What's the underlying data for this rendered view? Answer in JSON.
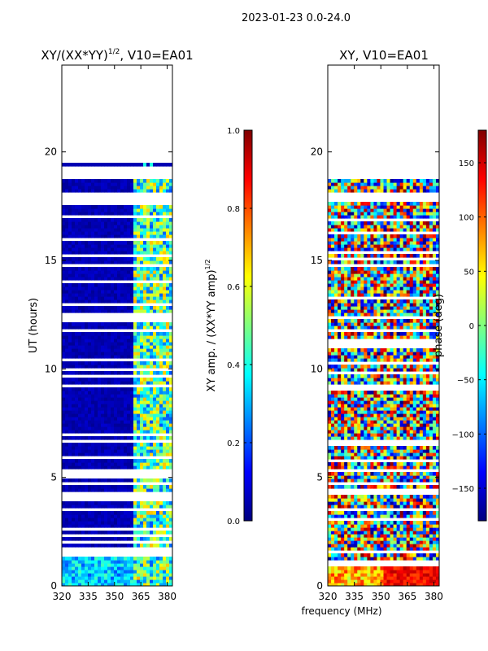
{
  "suptitle": "2023-01-23 0.0-24.0",
  "xlabel_shared": "frequency (MHz)",
  "chart_data": [
    {
      "type": "heatmap",
      "title": "XY/(XX*YY)^{1/2}, V10=EA01",
      "title_main": "XY/(XX*YY)",
      "title_sup": "1/2",
      "title_tail": ", V10=EA01",
      "xlabel": "",
      "ylabel": "UT (hours)",
      "xlim": [
        320,
        383
      ],
      "ylim": [
        0,
        24
      ],
      "xticks": [
        320,
        335,
        350,
        365,
        380
      ],
      "yticks": [
        0,
        5,
        10,
        15,
        20
      ],
      "colorbar": {
        "label": "XY amp. / (XX*YY amp)^{1/2}",
        "label_main": "XY amp. / (XX*YY amp)",
        "label_sup": "1/2",
        "range": [
          0.0,
          1.0
        ],
        "ticks": [
          0.0,
          0.2,
          0.4,
          0.6,
          0.8,
          1.0
        ],
        "tick_labels": [
          "0.0",
          "0.2",
          "0.4",
          "0.6",
          "0.8",
          "1.0"
        ],
        "colormap": "jet"
      }
    },
    {
      "type": "heatmap",
      "title": "XY, V10=EA01",
      "xlabel": "frequency (MHz)",
      "ylabel": "",
      "xlim": [
        320,
        383
      ],
      "ylim": [
        0,
        24
      ],
      "xticks": [
        320,
        335,
        350,
        365,
        380
      ],
      "yticks": [
        0,
        5,
        10,
        15,
        20
      ],
      "colorbar": {
        "label": "phase (deg)",
        "range": [
          -180,
          180
        ],
        "ticks": [
          -150,
          -100,
          -50,
          0,
          50,
          100,
          150
        ],
        "tick_labels": [
          "−150",
          "−100",
          "−50",
          "0",
          "50",
          "100",
          "150"
        ],
        "colormap": "jet"
      }
    }
  ],
  "colors": {
    "jet_stops": [
      "#00007f",
      "#0000ff",
      "#007fff",
      "#00ffff",
      "#7fff7f",
      "#ffff00",
      "#ff7f00",
      "#ff0000",
      "#7f0000"
    ],
    "axis": "#000000",
    "background": "#ffffff"
  }
}
